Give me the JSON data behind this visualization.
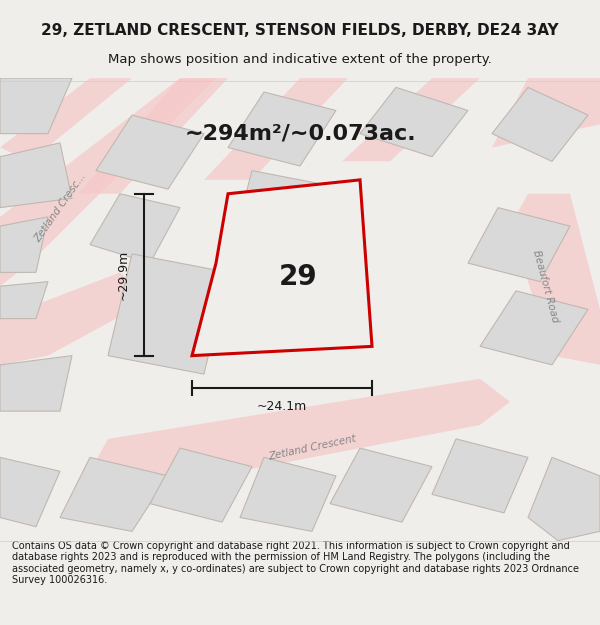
{
  "title_line1": "29, ZETLAND CRESCENT, STENSON FIELDS, DERBY, DE24 3AY",
  "title_line2": "Map shows position and indicative extent of the property.",
  "area_label": "~294m²/~0.073ac.",
  "plot_number": "29",
  "width_label": "~24.1m",
  "height_label": "~29.9m",
  "footer_text": "Contains OS data © Crown copyright and database right 2021. This information is subject to Crown copyright and database rights 2023 and is reproduced with the permission of HM Land Registry. The polygons (including the associated geometry, namely x, y co-ordinates) are subject to Crown copyright and database rights 2023 Ordnance Survey 100026316.",
  "bg_color": "#f0eeeb",
  "map_bg": "#f0eeeb",
  "road_color": "#f5c8c8",
  "building_color": "#d9d9d9",
  "building_edge_color": "#c0b8b0",
  "plot_outline_color": "#cc0000",
  "plot_fill_color": "#f0eeeb",
  "title_color": "#1a1a1a",
  "footer_color": "#1a1a1a",
  "road_label_color": "#888888",
  "dimension_color": "#1a1a1a",
  "plot_label_color": "#1a1a1a"
}
